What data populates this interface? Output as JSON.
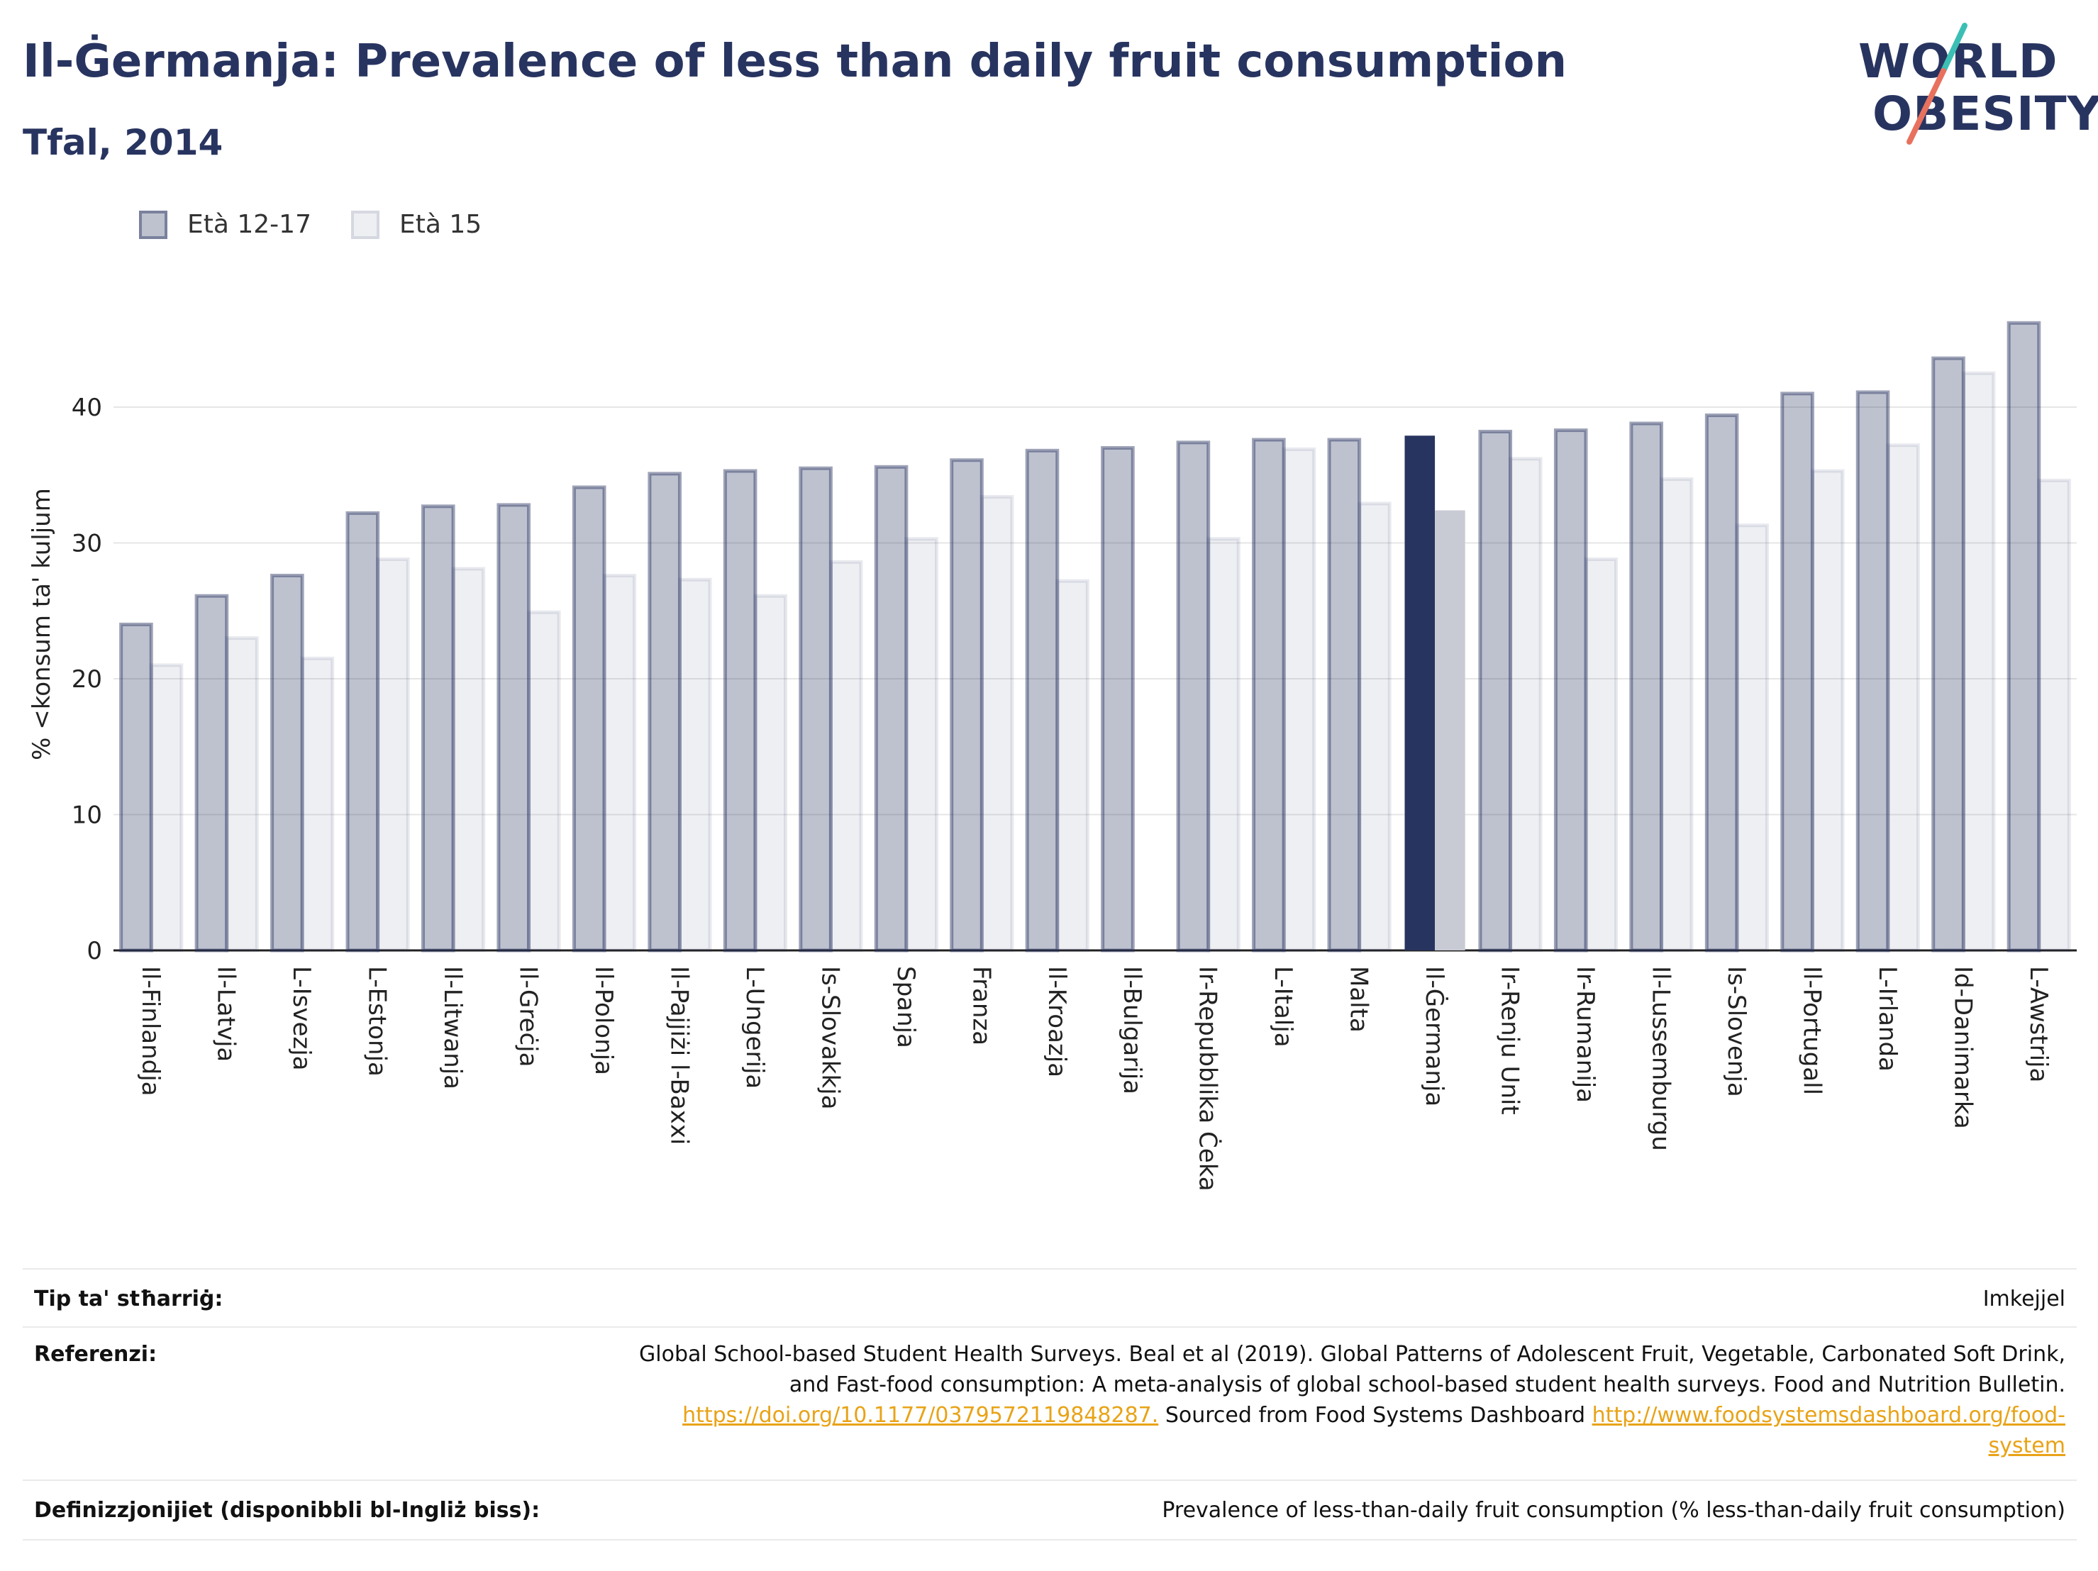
{
  "header": {
    "title": "Il-Ġermanja: Prevalence of less than daily fruit consumption",
    "subtitle": "Tfal, 2014"
  },
  "logo": {
    "line1": "WORLD",
    "line2": "OBESITY"
  },
  "legend": [
    {
      "label": "Età 12-17"
    },
    {
      "label": "Età 15"
    }
  ],
  "colors": {
    "highlight_primary": "#283460",
    "highlight_secondary": "#c8cad4",
    "series_a": "rgba(40,52,96,0.30)",
    "series_b": "rgba(40,52,96,0.08)"
  },
  "chart_data": {
    "type": "bar",
    "ylabel": "% <konsum ta' kuljum",
    "ylim": [
      0,
      47
    ],
    "yticks": [
      0,
      10,
      20,
      30,
      40
    ],
    "grid": true,
    "legend_position": "top-left",
    "highlight": "Il-Ġermanja",
    "categories": [
      "Il-Finlandja",
      "Il-Latvja",
      "L-Isvezja",
      "L-Estonja",
      "Il-Litwanja",
      "Il-Greċja",
      "Il-Polonja",
      "Il-Pajjiżi l-Baxxi",
      "L-Ungerija",
      "Is-Slovakkja",
      "Spanja",
      "Franza",
      "Il-Kroazja",
      "Il-Bulgarija",
      "Ir-Repubblika Ċeka",
      "L-Italja",
      "Malta",
      "Il-Ġermanja",
      "Ir-Renju Unit",
      "Ir-Rumanija",
      "Il-Lussemburgu",
      "Is-Slovenja",
      "Il-Portugall",
      "L-Irlanda",
      "Id-Danimarka",
      "L-Awstrija"
    ],
    "series": [
      {
        "name": "Età 12-17",
        "values": [
          24.0,
          26.1,
          27.6,
          32.2,
          32.7,
          32.8,
          34.1,
          35.1,
          35.3,
          35.5,
          35.6,
          36.1,
          36.8,
          37.0,
          37.4,
          37.6,
          37.6,
          37.9,
          38.2,
          38.3,
          38.8,
          39.4,
          41.0,
          41.1,
          43.6,
          46.2
        ]
      },
      {
        "name": "Età 15",
        "values": [
          21.0,
          23.0,
          21.5,
          28.8,
          28.1,
          24.9,
          27.6,
          27.3,
          26.1,
          28.6,
          30.3,
          33.4,
          27.2,
          null,
          30.3,
          36.9,
          32.9,
          32.4,
          36.2,
          28.8,
          34.7,
          31.3,
          35.3,
          37.2,
          42.5,
          34.6
        ]
      }
    ]
  },
  "footer": {
    "type_label": "Tip ta' stħarriġ:",
    "type_value": "Imkejjel",
    "ref_label": "Referenzi:",
    "ref_line1": "Global School-based Student Health Surveys. Beal et al (2019). Global Patterns of Adolescent Fruit, Vegetable, Carbonated Soft Drink,",
    "ref_line2": "and Fast-food consumption: A meta-analysis of global school-based student health surveys. Food and Nutrition Bulletin.",
    "ref_link1": "https://doi.org/10.1177/0379572119848287.",
    "ref_mid": " Sourced from Food Systems Dashboard ",
    "ref_link2a": "http://www.foodsystemsdashboard.org/food-",
    "ref_link2b": "system",
    "def_label": "Definizzjonijiet (disponibbli bl-Ingliż biss):",
    "def_value": "Prevalence of less-than-daily fruit consumption (% less-than-daily fruit consumption)"
  }
}
